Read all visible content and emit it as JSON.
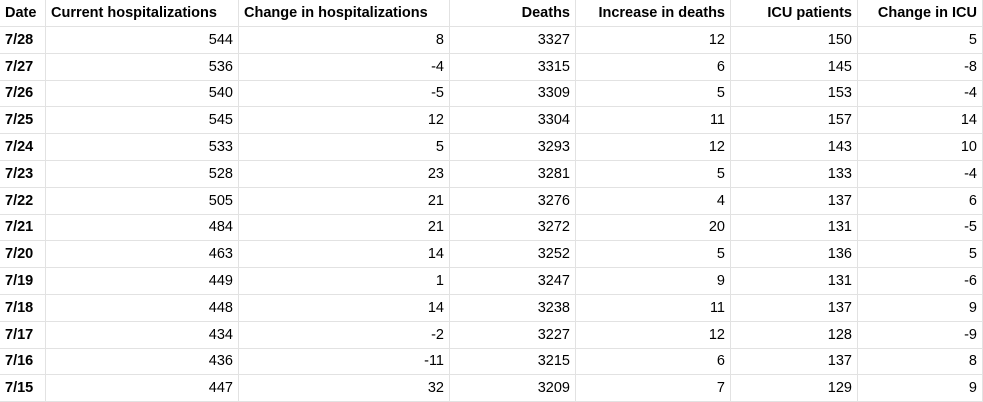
{
  "table": {
    "header": [
      "Date",
      "Current hospitalizations",
      "Change in hospitalizations",
      "Deaths",
      "Increase in deaths",
      "ICU patients",
      "Change in ICU"
    ],
    "rows": [
      [
        "7/28",
        544,
        8,
        3327,
        12,
        150,
        5
      ],
      [
        "7/27",
        536,
        -4,
        3315,
        6,
        145,
        -8
      ],
      [
        "7/26",
        540,
        -5,
        3309,
        5,
        153,
        -4
      ],
      [
        "7/25",
        545,
        12,
        3304,
        11,
        157,
        14
      ],
      [
        "7/24",
        533,
        5,
        3293,
        12,
        143,
        10
      ],
      [
        "7/23",
        528,
        23,
        3281,
        5,
        133,
        -4
      ],
      [
        "7/22",
        505,
        21,
        3276,
        4,
        137,
        6
      ],
      [
        "7/21",
        484,
        21,
        3272,
        20,
        131,
        -5
      ],
      [
        "7/20",
        463,
        14,
        3252,
        5,
        136,
        5
      ],
      [
        "7/19",
        449,
        1,
        3247,
        9,
        131,
        -6
      ],
      [
        "7/18",
        448,
        14,
        3238,
        11,
        137,
        9
      ],
      [
        "7/17",
        434,
        -2,
        3227,
        12,
        128,
        -9
      ],
      [
        "7/16",
        436,
        -11,
        3215,
        6,
        137,
        8
      ],
      [
        "7/15",
        447,
        32,
        3209,
        7,
        129,
        9
      ]
    ]
  }
}
